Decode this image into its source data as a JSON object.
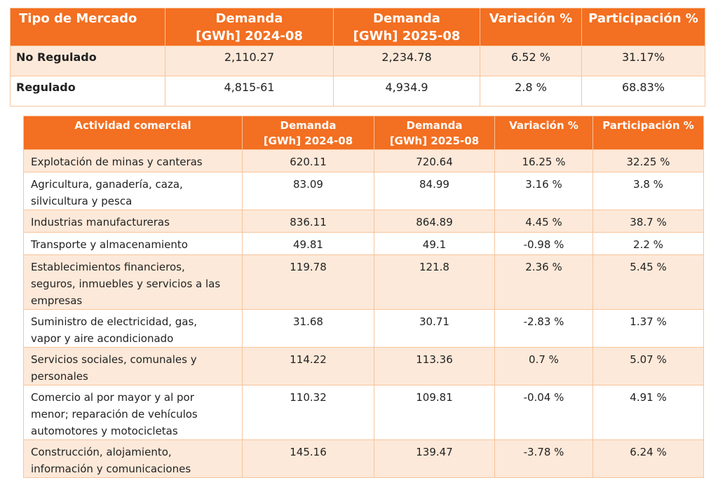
{
  "market_table": {
    "headers": [
      "Tipo de Mercado",
      "Demanda [GWh] 2024-08",
      "Demanda [GWh] 2025-08",
      "Variación %",
      "Participación %"
    ],
    "header_lines": [
      [
        "Tipo de Mercado"
      ],
      [
        "Demanda",
        "[GWh] 2024-08"
      ],
      [
        "Demanda",
        "[GWh] 2025-08"
      ],
      [
        "Variación %"
      ],
      [
        "Participación %"
      ]
    ],
    "rows": [
      [
        "No Regulado",
        "2,110.27",
        "2,234.78",
        "6.52 %",
        "31.17%"
      ],
      [
        "Regulado",
        "4,815-61",
        "4,934.9",
        "2.8 %",
        "68.83%"
      ]
    ]
  },
  "activity_table": {
    "header_lines": [
      [
        "Actividad comercial"
      ],
      [
        "Demanda",
        "[GWh] 2024-08"
      ],
      [
        "Demanda",
        "[GWh] 2025-08"
      ],
      [
        "Variación %"
      ],
      [
        "Participación %"
      ]
    ],
    "rows": [
      {
        "label": [
          "Explotación de minas y canteras"
        ],
        "d2024": "620.11",
        "d2025": "720.64",
        "var": "16.25 %",
        "part": "32.25 %"
      },
      {
        "label": [
          "Agricultura, ganadería, caza,",
          "silvicultura y pesca"
        ],
        "d2024": "83.09",
        "d2025": "84.99",
        "var": "3.16 %",
        "part": "3.8 %"
      },
      {
        "label": [
          "Industrias manufactureras"
        ],
        "d2024": "836.11",
        "d2025": "864.89",
        "var": "4.45 %",
        "part": "38.7 %"
      },
      {
        "label": [
          "Transporte y almacenamiento"
        ],
        "d2024": "49.81",
        "d2025": "49.1",
        "var": "-0.98 %",
        "part": "2.2 %"
      },
      {
        "label": [
          "Establecimientos financieros,",
          "seguros, inmuebles y servicios a las",
          "empresas"
        ],
        "d2024": "119.78",
        "d2025": "121.8",
        "var": "2.36 %",
        "part": "5.45 %"
      },
      {
        "label": [
          "Suministro de electricidad, gas,",
          "vapor y aire acondicionado"
        ],
        "d2024": "31.68",
        "d2025": "30.71",
        "var": "-2.83 %",
        "part": "1.37 %"
      },
      {
        "label": [
          "Servicios sociales, comunales y",
          "personales"
        ],
        "d2024": "114.22",
        "d2025": "113.36",
        "var": "0.7 %",
        "part": "5.07 %"
      },
      {
        "label": [
          "Comercio al por mayor y al por",
          "menor; reparación de vehículos",
          "automotores y motocicletas"
        ],
        "d2024": "110.32",
        "d2025": "109.81",
        "var": "-0.04 %",
        "part": "4.91 %"
      },
      {
        "label": [
          "Construcción, alojamiento,",
          "información y comunicaciones"
        ],
        "d2024": "145.16",
        "d2025": "139.47",
        "var": "-3.78 %",
        "part": "6.24 %"
      }
    ]
  }
}
